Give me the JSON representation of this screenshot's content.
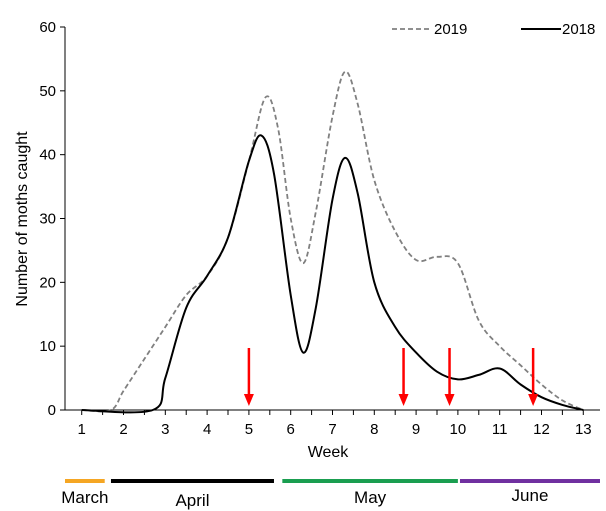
{
  "chart_data": {
    "type": "line",
    "title": "",
    "xlabel": "Week",
    "ylabel": "Number of moths caught",
    "xlim": [
      0.6,
      13.4
    ],
    "ylim": [
      0,
      60
    ],
    "x_ticks": [
      1,
      2,
      3,
      4,
      5,
      6,
      7,
      8,
      9,
      10,
      11,
      12,
      13
    ],
    "y_ticks": [
      0,
      10,
      20,
      30,
      40,
      50,
      60
    ],
    "grid": false,
    "legend_position": "top-right",
    "series": [
      {
        "name": "2019",
        "style": "dashed",
        "color": "#808080",
        "points": [
          [
            1,
            0
          ],
          [
            1.7,
            0
          ],
          [
            2,
            3
          ],
          [
            2.5,
            8
          ],
          [
            3,
            13
          ],
          [
            3.5,
            18
          ],
          [
            4,
            21
          ],
          [
            4.5,
            27
          ],
          [
            5,
            39
          ],
          [
            5.4,
            49
          ],
          [
            5.7,
            44
          ],
          [
            6,
            30
          ],
          [
            6.3,
            23
          ],
          [
            6.6,
            31
          ],
          [
            7,
            46
          ],
          [
            7.3,
            53
          ],
          [
            7.6,
            48
          ],
          [
            8,
            36
          ],
          [
            8.5,
            28
          ],
          [
            9,
            23.5
          ],
          [
            9.5,
            24
          ],
          [
            10,
            23
          ],
          [
            10.5,
            14
          ],
          [
            11,
            10
          ],
          [
            11.5,
            7
          ],
          [
            12,
            4
          ],
          [
            12.5,
            1.5
          ],
          [
            13,
            0
          ]
        ]
      },
      {
        "name": "2018",
        "style": "solid",
        "color": "#000000",
        "points": [
          [
            1,
            0
          ],
          [
            2.7,
            0
          ],
          [
            3,
            5
          ],
          [
            3.5,
            16
          ],
          [
            4,
            21
          ],
          [
            4.5,
            27
          ],
          [
            5,
            39
          ],
          [
            5.3,
            43
          ],
          [
            5.6,
            37
          ],
          [
            6,
            18
          ],
          [
            6.3,
            9
          ],
          [
            6.6,
            16
          ],
          [
            7,
            33
          ],
          [
            7.3,
            39.5
          ],
          [
            7.6,
            34
          ],
          [
            8,
            20
          ],
          [
            8.5,
            13
          ],
          [
            9,
            9
          ],
          [
            9.5,
            6
          ],
          [
            10,
            4.8
          ],
          [
            10.5,
            5.5
          ],
          [
            11,
            6.5
          ],
          [
            11.5,
            4
          ],
          [
            12,
            2
          ],
          [
            12.5,
            0.8
          ],
          [
            13,
            0
          ]
        ]
      }
    ],
    "arrows": [
      5,
      8.7,
      9.8,
      11.8
    ],
    "arrow_color": "#ff0000",
    "months": [
      {
        "name": "March",
        "start": 0.6,
        "end": 1.55,
        "color": "#f5a623"
      },
      {
        "name": "April",
        "start": 1.7,
        "end": 5.6,
        "color": "#000000"
      },
      {
        "name": "May",
        "start": 5.8,
        "end": 10.0,
        "color": "#1a9e50"
      },
      {
        "name": "June",
        "start": 10.05,
        "end": 13.4,
        "color": "#7030a0"
      }
    ]
  }
}
